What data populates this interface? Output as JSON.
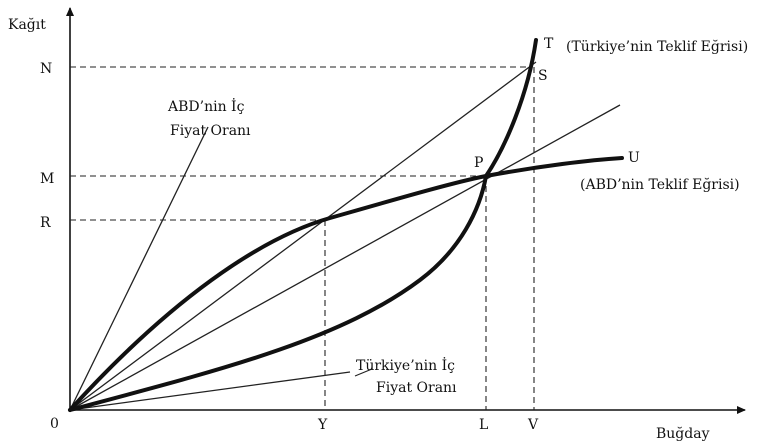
{
  "axes": {
    "x_label": "Buğday",
    "y_label": "Kağıt",
    "origin_label": "0",
    "x_ticks": [
      "Y",
      "L",
      "V"
    ],
    "y_ticks": [
      "N",
      "M",
      "R"
    ]
  },
  "points": {
    "P": "P",
    "S": "S",
    "T": "T",
    "U": "U"
  },
  "curves": {
    "turkey_offer": "(Türkiye’nin Teklif Eğrisi)",
    "usa_offer": "(ABD’nin Teklif Eğrisi)"
  },
  "annotations": {
    "usa_domestic_line1": "ABD’nin İç",
    "usa_domestic_line2": "Fiyat Oranı",
    "turkey_domestic_line1": "Türkiye’nin İç",
    "turkey_domestic_line2": "Fiyat Oranı"
  }
}
